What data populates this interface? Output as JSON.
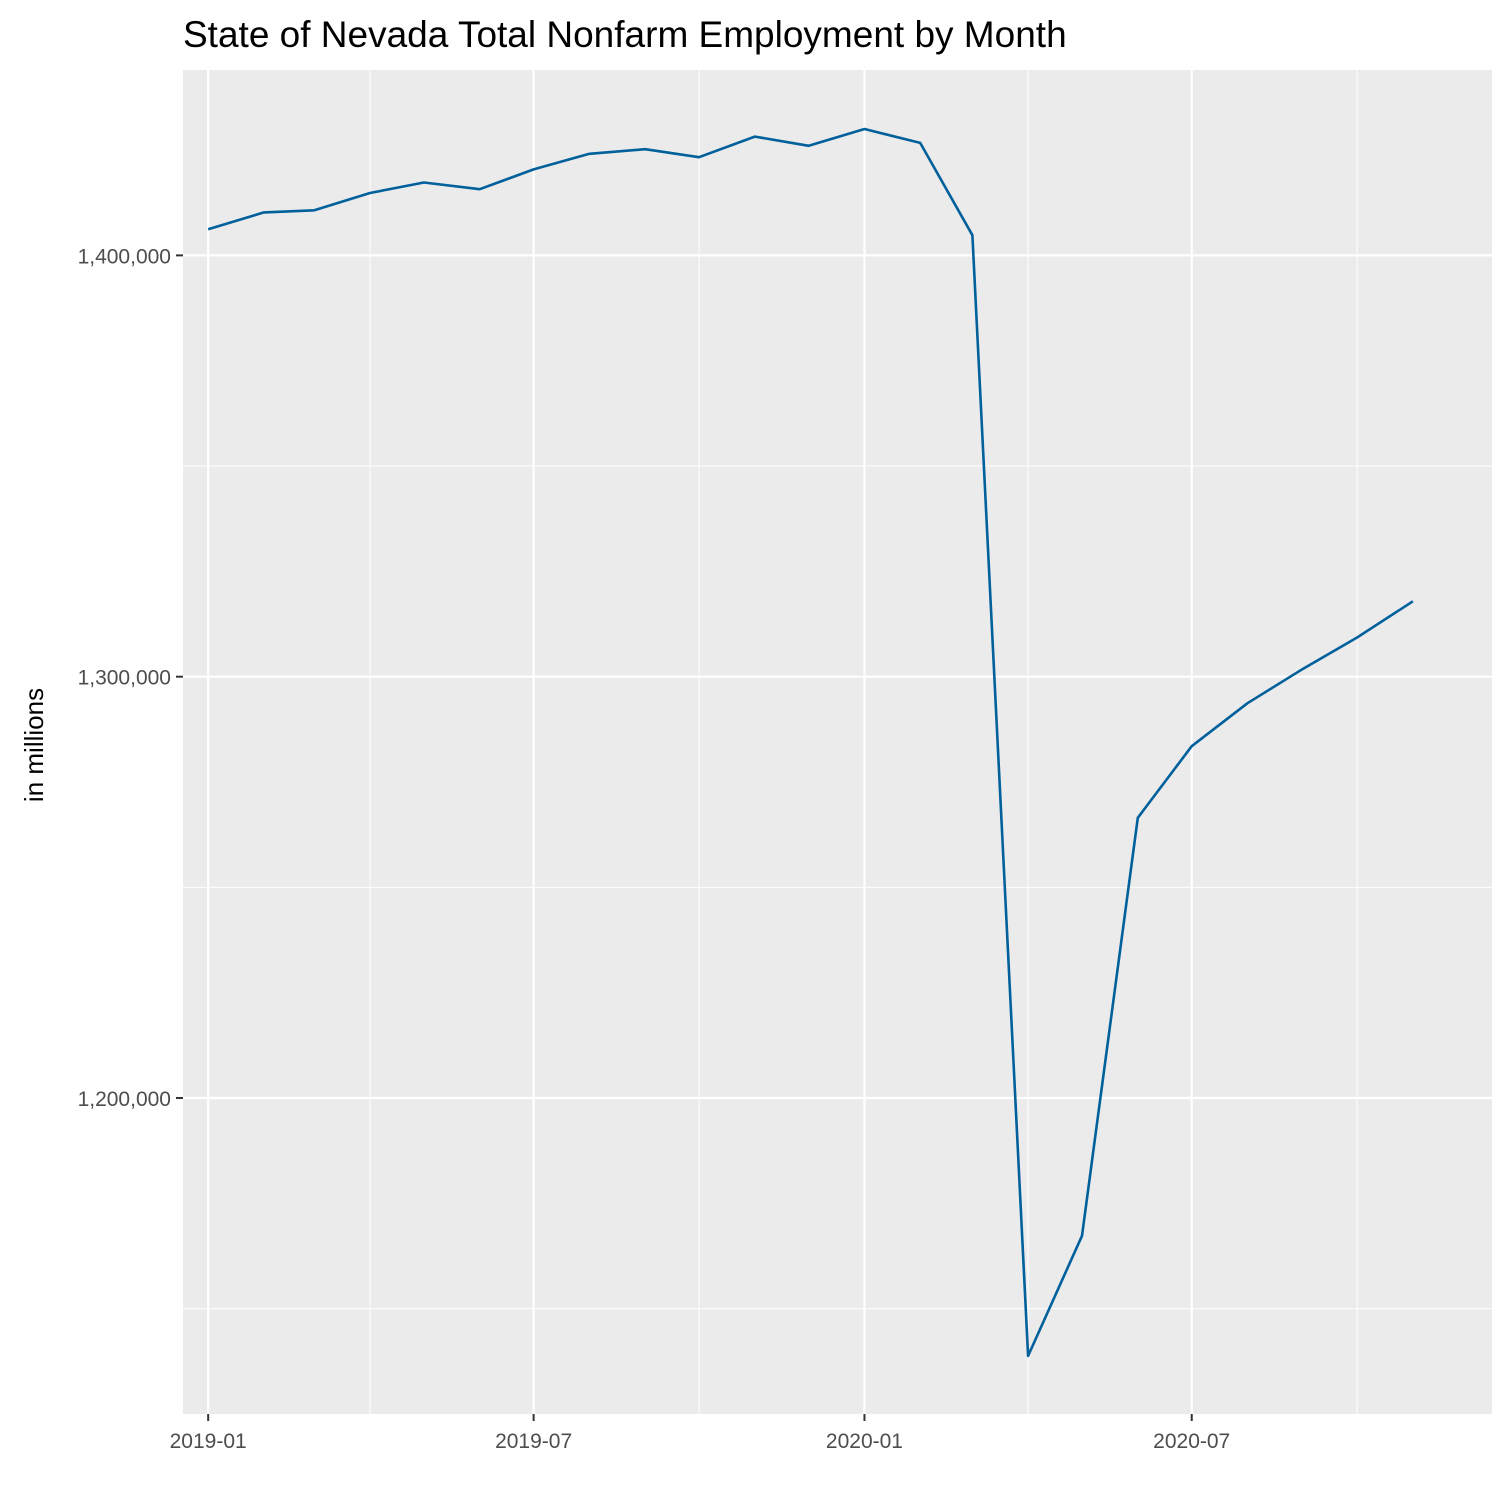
{
  "chart_data": {
    "type": "line",
    "title": "State of Nevada Total Nonfarm Employment by Month",
    "xlabel": "",
    "ylabel": "in millions",
    "x_ticks": [
      "2019-01",
      "2019-07",
      "2020-01",
      "2020-07"
    ],
    "y_ticks": [
      1200000,
      1300000,
      1400000
    ],
    "y_tick_labels": [
      "1,200,000",
      "1,300,000",
      "1,400,000"
    ],
    "xlim": [
      "2018-12-18",
      "2020-12-15"
    ],
    "ylim": [
      1125000,
      1444000
    ],
    "grid": true,
    "background": "#ebebeb",
    "series": [
      {
        "color": "#00609c",
        "points": [
          {
            "x": "2019-01",
            "y": 1406200
          },
          {
            "x": "2019-02",
            "y": 1410200
          },
          {
            "x": "2019-03",
            "y": 1410700
          },
          {
            "x": "2019-04",
            "y": 1414800
          },
          {
            "x": "2019-05",
            "y": 1417300
          },
          {
            "x": "2019-06",
            "y": 1415700
          },
          {
            "x": "2019-07",
            "y": 1420400
          },
          {
            "x": "2019-08",
            "y": 1424100
          },
          {
            "x": "2019-09",
            "y": 1425200
          },
          {
            "x": "2019-10",
            "y": 1423300
          },
          {
            "x": "2019-11",
            "y": 1428200
          },
          {
            "x": "2019-12",
            "y": 1426000
          },
          {
            "x": "2020-01",
            "y": 1430000
          },
          {
            "x": "2020-02",
            "y": 1426700
          },
          {
            "x": "2020-03",
            "y": 1404800
          },
          {
            "x": "2020-04",
            "y": 1138800
          },
          {
            "x": "2020-05",
            "y": 1167300
          },
          {
            "x": "2020-06",
            "y": 1266500
          },
          {
            "x": "2020-07",
            "y": 1283500
          },
          {
            "x": "2020-08",
            "y": 1293700
          },
          {
            "x": "2020-09",
            "y": 1301900
          },
          {
            "x": "2020-10",
            "y": 1309300
          },
          {
            "x": "2020-11",
            "y": 1317900
          }
        ]
      }
    ]
  }
}
